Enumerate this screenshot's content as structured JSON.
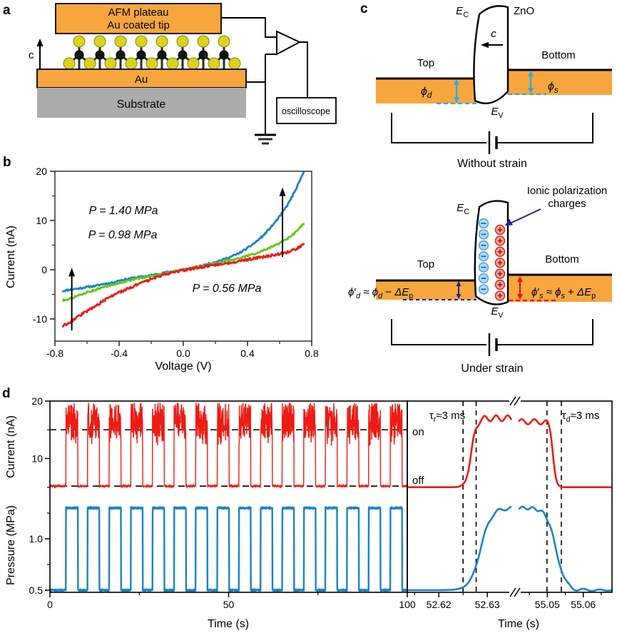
{
  "palette": {
    "orange": "#F7A63E",
    "substrate_gray": "#ACACAC",
    "blue_trace": "#1B84C4",
    "green_trace": "#5EC812",
    "red_trace": "#EE1B14",
    "cyan_accent": "#29ABE2",
    "navy": "#23238C",
    "black": "#000000"
  },
  "panel_a": {
    "label": "a",
    "plateau_line1": "AFM plateau",
    "plateau_line2": "Au coated tip",
    "c_axis": "c",
    "au_layer": "Au",
    "substrate": "Substrate",
    "oscilloscope": "oscilloscope"
  },
  "panel_b": {
    "label": "b"
  },
  "panel_c": {
    "label": "c",
    "zno": "ZnO",
    "ec": [
      {
        "t": "E",
        "it": 1
      },
      {
        "t": "C",
        "sub": 1
      }
    ],
    "ev": [
      {
        "t": "E",
        "it": 1
      },
      {
        "t": "V",
        "sub": 1
      }
    ],
    "c_arrow_label": [
      {
        "t": "c",
        "it": 1
      }
    ],
    "top_electrode": "Top",
    "bottom_electrode": "Bottom",
    "phi_d": [
      {
        "t": "ϕ",
        "it": 1
      },
      {
        "t": "d",
        "sub": 1,
        "it": 1
      }
    ],
    "phi_s": [
      {
        "t": "ϕ",
        "it": 1
      },
      {
        "t": "s",
        "sub": 1,
        "it": 1
      }
    ],
    "caption_top": "Without strain",
    "caption_bottom": "Under strain",
    "ionic_line1": "Ionic polarization",
    "ionic_line2": "charges",
    "formula_d": [
      {
        "t": "ϕ",
        "it": 1
      },
      {
        "t": "′"
      },
      {
        "t": "d",
        "sub": 1,
        "it": 1
      },
      {
        "t": " ≈ "
      },
      {
        "t": "ϕ",
        "it": 1
      },
      {
        "t": "d",
        "sub": 1,
        "it": 1
      },
      {
        "t": " − "
      },
      {
        "t": "ΔE",
        "it": 1
      },
      {
        "t": "p",
        "sub": 1
      }
    ],
    "formula_s": [
      {
        "t": "ϕ",
        "it": 1
      },
      {
        "t": "′"
      },
      {
        "t": "s",
        "sub": 1,
        "it": 1
      },
      {
        "t": " ≈ "
      },
      {
        "t": "ϕ",
        "it": 1
      },
      {
        "t": "s",
        "sub": 1,
        "it": 1
      },
      {
        "t": " + "
      },
      {
        "t": "ΔE",
        "it": 1
      },
      {
        "t": "p",
        "sub": 1
      }
    ]
  },
  "panel_d": {
    "label": "d",
    "ylabel_current": "Current (nA)",
    "ylabel_pressure": "Pressure (MPa)",
    "xlabel_left": "Time (s)",
    "xlabel_right": "Time (s)",
    "on_label": "on",
    "off_label": "off",
    "tau_rise": [
      {
        "t": "τ"
      },
      {
        "t": "r",
        "sub": 1
      },
      {
        "t": "≈3 ms"
      }
    ],
    "tau_decay": [
      {
        "t": "τ"
      },
      {
        "t": "d",
        "sub": 1
      },
      {
        "t": "≈3 ms"
      }
    ]
  },
  "chart_data": [
    {
      "id": "iv-curves",
      "type": "line",
      "xlabel": "Voltage (V)",
      "ylabel": "Current (nA)",
      "xlim": [
        -0.8,
        0.8
      ],
      "ylim": [
        -14.5,
        20
      ],
      "xticks": [
        {
          "v": -0.8,
          "label": "-0.8"
        },
        {
          "v": -0.4,
          "label": "-0.4"
        },
        {
          "v": 0.0,
          "label": "0.0"
        },
        {
          "v": 0.4,
          "label": "0.4"
        },
        {
          "v": 0.8,
          "label": "0.8"
        }
      ],
      "xminor": [
        -0.6,
        -0.2,
        0.2,
        0.6
      ],
      "yticks": [
        {
          "v": 20,
          "label": "20"
        },
        {
          "v": 10,
          "label": "10"
        },
        {
          "v": 0,
          "label": "0"
        },
        {
          "v": -10,
          "label": "-10"
        }
      ],
      "yminor": [
        15,
        5,
        -5
      ],
      "legend_position": "inside",
      "grid": false,
      "series": [
        {
          "name": "P = 1.40 MPa",
          "pressure_mpa": 1.4,
          "color": "#1B84C4",
          "points": [
            [
              -0.75,
              -4.3
            ],
            [
              -0.7,
              -4.0
            ],
            [
              -0.65,
              -3.8
            ],
            [
              -0.6,
              -3.5
            ],
            [
              -0.55,
              -3.3
            ],
            [
              -0.5,
              -2.9
            ],
            [
              -0.45,
              -2.7
            ],
            [
              -0.4,
              -2.2
            ],
            [
              -0.35,
              -1.9
            ],
            [
              -0.3,
              -1.6
            ],
            [
              -0.25,
              -1.4
            ],
            [
              -0.2,
              -1.1
            ],
            [
              -0.15,
              -0.8
            ],
            [
              -0.1,
              -0.5
            ],
            [
              -0.05,
              -0.25
            ],
            [
              0,
              0
            ],
            [
              0.05,
              0.3
            ],
            [
              0.1,
              0.7
            ],
            [
              0.15,
              1.1
            ],
            [
              0.2,
              1.6
            ],
            [
              0.25,
              2.1
            ],
            [
              0.3,
              2.7
            ],
            [
              0.35,
              3.4
            ],
            [
              0.4,
              4.4
            ],
            [
              0.45,
              5.6
            ],
            [
              0.5,
              7.0
            ],
            [
              0.55,
              8.8
            ],
            [
              0.6,
              10.8
            ],
            [
              0.65,
              13.2
            ],
            [
              0.7,
              16.2
            ],
            [
              0.75,
              19.8
            ]
          ]
        },
        {
          "name": "P = 0.98 MPa",
          "pressure_mpa": 0.98,
          "color": "#5EC812",
          "points": [
            [
              -0.75,
              -6.2
            ],
            [
              -0.7,
              -5.8
            ],
            [
              -0.65,
              -5.2
            ],
            [
              -0.6,
              -4.6
            ],
            [
              -0.55,
              -4.1
            ],
            [
              -0.5,
              -3.6
            ],
            [
              -0.45,
              -3.1
            ],
            [
              -0.4,
              -2.7
            ],
            [
              -0.35,
              -2.3
            ],
            [
              -0.3,
              -1.9
            ],
            [
              -0.25,
              -1.6
            ],
            [
              -0.2,
              -1.3
            ],
            [
              -0.15,
              -1.0
            ],
            [
              -0.1,
              -0.6
            ],
            [
              -0.05,
              -0.3
            ],
            [
              0,
              0
            ],
            [
              0.05,
              0.3
            ],
            [
              0.1,
              0.6
            ],
            [
              0.15,
              0.95
            ],
            [
              0.2,
              1.3
            ],
            [
              0.25,
              1.65
            ],
            [
              0.3,
              2.0
            ],
            [
              0.35,
              2.4
            ],
            [
              0.4,
              2.85
            ],
            [
              0.45,
              3.3
            ],
            [
              0.5,
              3.9
            ],
            [
              0.55,
              4.6
            ],
            [
              0.6,
              5.4
            ],
            [
              0.65,
              6.3
            ],
            [
              0.7,
              7.6
            ],
            [
              0.75,
              9.4
            ]
          ]
        },
        {
          "name": "P = 0.56 MPa",
          "pressure_mpa": 0.56,
          "color": "#EE1B14",
          "points": [
            [
              -0.75,
              -11.4
            ],
            [
              -0.7,
              -10.5
            ],
            [
              -0.65,
              -9.4
            ],
            [
              -0.6,
              -8.4
            ],
            [
              -0.55,
              -7.4
            ],
            [
              -0.5,
              -6.4
            ],
            [
              -0.45,
              -5.4
            ],
            [
              -0.4,
              -4.6
            ],
            [
              -0.35,
              -3.9
            ],
            [
              -0.3,
              -3.2
            ],
            [
              -0.25,
              -2.6
            ],
            [
              -0.2,
              -1.9
            ],
            [
              -0.15,
              -1.3
            ],
            [
              -0.1,
              -0.8
            ],
            [
              -0.05,
              -0.4
            ],
            [
              0,
              -0.1
            ],
            [
              0.05,
              0.2
            ],
            [
              0.1,
              0.5
            ],
            [
              0.15,
              0.75
            ],
            [
              0.2,
              1.0
            ],
            [
              0.25,
              1.25
            ],
            [
              0.3,
              1.5
            ],
            [
              0.35,
              1.75
            ],
            [
              0.4,
              2.05
            ],
            [
              0.45,
              2.35
            ],
            [
              0.5,
              2.6
            ],
            [
              0.55,
              2.9
            ],
            [
              0.6,
              3.2
            ],
            [
              0.65,
              3.6
            ],
            [
              0.7,
              4.2
            ],
            [
              0.75,
              5.1
            ]
          ]
        }
      ],
      "arrows": [
        {
          "x_v": -0.695,
          "y_from": -12.3,
          "y_to": 0.4
        },
        {
          "x_v": 0.618,
          "y_from": 2.6,
          "y_to": 16.7
        }
      ]
    },
    {
      "id": "time-traces",
      "type": "line",
      "xlabel": "Time (s)",
      "xlim": [
        0,
        100
      ],
      "xticks": [
        {
          "v": 0,
          "label": "0"
        },
        {
          "v": 50,
          "label": "50"
        },
        {
          "v": 100,
          "label": "100"
        }
      ],
      "xminor": [
        25,
        75
      ],
      "current": {
        "ylabel": "Current (nA)",
        "yticks": [
          {
            "v": 20,
            "label": "20"
          },
          {
            "v": 10,
            "label": "10"
          }
        ],
        "yminor": [
          15,
          5
        ],
        "off_level_na": 5.2,
        "on_mean_na": 16.6,
        "burst_min_na": 11.8,
        "burst_max_na": 20,
        "dashed_guides_na": [
          15,
          5.2
        ]
      },
      "pressure": {
        "ylabel": "Pressure (MPa)",
        "yticks": [
          {
            "v": 1.0,
            "label": "1.0"
          },
          {
            "v": 0.5,
            "label": "0.5"
          }
        ],
        "yminor": [
          1.25,
          0.75
        ],
        "low_mpa": 0.5,
        "high_mpa": 1.3
      },
      "pulses": {
        "first_start_s": 4.5,
        "period_s": 6.05,
        "width_s": 3.3,
        "count": 16
      }
    },
    {
      "id": "zoom-traces",
      "type": "line",
      "xlabel": "Time (s)",
      "segments": [
        {
          "xlim": [
            52.6135,
            52.635
          ]
        },
        {
          "xlim": [
            55.042,
            55.068
          ]
        }
      ],
      "xticks": [
        {
          "v": 52.62,
          "label": "52.62"
        },
        {
          "v": 52.63,
          "label": "52.63"
        },
        {
          "v": 55.05,
          "label": "55.05"
        },
        {
          "v": 55.06,
          "label": "55.06"
        }
      ],
      "xminor": [
        52.615,
        52.625,
        55.045,
        55.055,
        55.065
      ],
      "dashed_marker_times_s": [
        52.625,
        52.6277,
        55.0499,
        55.0539
      ],
      "rise_time_ms": 3,
      "decay_time_ms": 3,
      "current": {
        "off_na": 5.0,
        "on_na": 17.0,
        "rise_center_s": 52.6267,
        "fall_center_s": 55.0516
      },
      "pressure": {
        "low_mpa": 0.5,
        "high_mpa": 1.3,
        "rise_center_s": 52.6286,
        "fall_center_s": 55.0524
      }
    }
  ]
}
